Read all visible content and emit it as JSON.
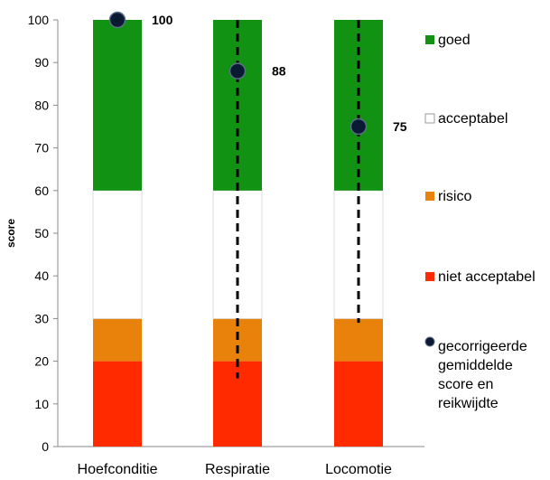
{
  "chart_data": {
    "type": "bar",
    "stacked": true,
    "categories": [
      "Hoefconditie",
      "Respiratie",
      "Locomotie"
    ],
    "ylabel": "score",
    "ylim": [
      0,
      100
    ],
    "yticks": [
      0,
      10,
      20,
      30,
      40,
      50,
      60,
      70,
      80,
      90,
      100
    ],
    "bands": [
      {
        "name": "niet acceptabel",
        "from": 0,
        "to": 20,
        "color": "#ff2a00"
      },
      {
        "name": "risico",
        "from": 20,
        "to": 30,
        "color": "#e8820a"
      },
      {
        "name": "acceptabel",
        "from": 30,
        "to": 60,
        "color": "#ffffff"
      },
      {
        "name": "goed",
        "from": 60,
        "to": 100,
        "color": "#129212"
      }
    ],
    "points": [
      {
        "category": "Hoefconditie",
        "value": 100,
        "label": "100",
        "range": null
      },
      {
        "category": "Respiratie",
        "value": 88,
        "label": "88",
        "range": [
          16,
          100
        ]
      },
      {
        "category": "Locomotie",
        "value": 75,
        "label": "75",
        "range": [
          29,
          100
        ]
      }
    ],
    "legend": {
      "position": "right",
      "items": [
        {
          "label": "goed",
          "color": "#129212",
          "kind": "square"
        },
        {
          "label": "acceptabel",
          "color": "#ffffff",
          "kind": "square"
        },
        {
          "label": "risico",
          "color": "#e8820a",
          "kind": "square"
        },
        {
          "label": "niet acceptabel",
          "color": "#ff2a00",
          "kind": "square"
        },
        {
          "label": "gecorrigeerde\ngemiddelde\nscore en\nreikwijdte",
          "color": "#0a1a33",
          "kind": "dot"
        }
      ]
    }
  }
}
